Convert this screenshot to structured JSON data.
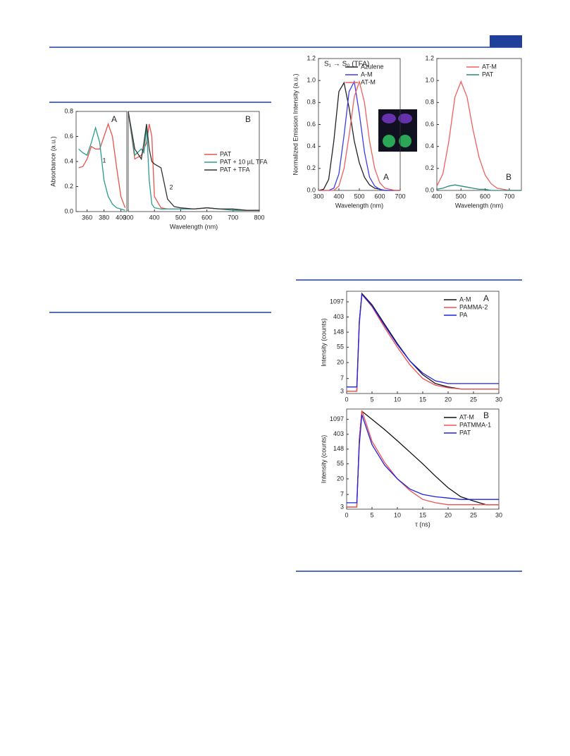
{
  "chart_data": [
    {
      "type": "line",
      "ylabel": "Absorbance (a.u.)",
      "panel_label": "A",
      "annotations": [
        "1"
      ],
      "x": [
        350,
        355,
        360,
        365,
        370,
        375,
        380,
        385,
        390,
        395,
        400,
        405
      ],
      "xlim": [
        347,
        407
      ],
      "xticks": [
        360,
        380,
        400
      ],
      "ylim": [
        0,
        0.8
      ],
      "yticks": [
        {
          "value": 0,
          "label": "0.0"
        },
        0.2,
        0.4,
        0.6,
        0.8
      ],
      "series": [
        {
          "color": "#e8534a",
          "values": [
            0.35,
            0.36,
            0.42,
            0.52,
            0.5,
            0.5,
            0.6,
            0.7,
            0.6,
            0.35,
            0.12,
            0.03
          ]
        },
        {
          "color": "#2a9d8f",
          "values": [
            0.5,
            0.47,
            0.45,
            0.55,
            0.67,
            0.55,
            0.25,
            0.12,
            0.06,
            0.03,
            0.02,
            0.01
          ]
        }
      ]
    },
    {
      "type": "line",
      "xlabel": "Wavelength (nm)",
      "panel_label": "B",
      "annotations": [
        "2"
      ],
      "legend": "center right",
      "x": [
        300,
        325,
        350,
        360,
        370,
        380,
        390,
        400,
        425,
        450,
        475,
        500,
        550,
        600,
        650,
        700,
        750,
        800
      ],
      "xlim": [
        300,
        800
      ],
      "xticks": [
        300,
        400,
        500,
        600,
        700,
        800
      ],
      "ylim": [
        0,
        0.8
      ],
      "series": [
        {
          "name": "PAT",
          "color": "#e8534a",
          "values": [
            0.8,
            0.42,
            0.45,
            0.5,
            0.55,
            0.7,
            0.6,
            0.12,
            0.03,
            0.02,
            0.02,
            0.02,
            0.02,
            0.03,
            0.02,
            0.02,
            0.01,
            0.01
          ]
        },
        {
          "name": "PAT + 10 µL TFA",
          "color": "#2a9d8f",
          "values": [
            0.8,
            0.45,
            0.5,
            0.47,
            0.67,
            0.25,
            0.06,
            0.03,
            0.02,
            0.02,
            0.02,
            0.02,
            0.02,
            0.03,
            0.02,
            0.01,
            0.01,
            0.01
          ]
        },
        {
          "name": "PAT + TFA",
          "color": "#333333",
          "values": [
            0.8,
            0.5,
            0.42,
            0.55,
            0.7,
            0.5,
            0.4,
            0.38,
            0.35,
            0.1,
            0.04,
            0.03,
            0.02,
            0.03,
            0.02,
            0.02,
            0.01,
            0.01
          ]
        }
      ]
    },
    {
      "type": "line",
      "title": "S₁ → S₀ (TFA)",
      "xlabel": "Wavelength (nm)",
      "ylabel": "Normalized Emission Intensity (a.u.)",
      "panel_label": "A",
      "legend": "upper right",
      "x": [
        300,
        325,
        350,
        375,
        400,
        425,
        450,
        475,
        500,
        525,
        550,
        575,
        600,
        625,
        650,
        675,
        700
      ],
      "xlim": [
        300,
        700
      ],
      "xticks": [
        300,
        400,
        500,
        600,
        700
      ],
      "ylim": [
        0,
        1.2
      ],
      "yticks": [
        {
          "value": 0,
          "label": "0.0"
        },
        0.2,
        0.4,
        0.6,
        0.8,
        {
          "value": 1,
          "label": "1.0"
        },
        1.2
      ],
      "series": [
        {
          "name": "Azulene",
          "color": "#222222",
          "values": [
            0,
            0.01,
            0.1,
            0.45,
            0.9,
            0.98,
            0.75,
            0.45,
            0.25,
            0.12,
            0.05,
            0.02,
            0.01,
            0,
            0,
            0,
            0
          ]
        },
        {
          "name": "A-M",
          "color": "#3b3bf0",
          "values": [
            0,
            0,
            0,
            0.02,
            0.15,
            0.5,
            0.9,
            0.99,
            0.7,
            0.35,
            0.12,
            0.04,
            0.01,
            0,
            0,
            0,
            0
          ]
        },
        {
          "name": "AT-M",
          "color": "#f06060",
          "values": [
            0,
            0,
            0,
            0,
            0.04,
            0.2,
            0.5,
            0.85,
            0.99,
            0.8,
            0.45,
            0.2,
            0.07,
            0.02,
            0.01,
            0,
            0
          ]
        }
      ]
    },
    {
      "type": "line",
      "xlabel": "Wavelength (nm)",
      "panel_label": "B",
      "legend": "upper right",
      "x": [
        400,
        425,
        450,
        475,
        500,
        525,
        550,
        575,
        600,
        625,
        650,
        675,
        700,
        725,
        750
      ],
      "xlim": [
        400,
        750
      ],
      "xticks": [
        400,
        500,
        600,
        700
      ],
      "ylim": [
        0,
        1.2
      ],
      "yticks": [
        {
          "value": 0,
          "label": "0.0"
        },
        0.2,
        0.4,
        0.6,
        0.8,
        {
          "value": 1,
          "label": "1.0"
        },
        1.2
      ],
      "series": [
        {
          "name": "AT-M",
          "color": "#f06060",
          "values": [
            0.04,
            0.15,
            0.45,
            0.85,
            0.99,
            0.85,
            0.55,
            0.3,
            0.14,
            0.06,
            0.02,
            0.01,
            0,
            0,
            0
          ]
        },
        {
          "name": "PAT",
          "color": "#2a8a7a",
          "values": [
            0.01,
            0.02,
            0.04,
            0.05,
            0.04,
            0.03,
            0.02,
            0.01,
            0.01,
            0,
            0,
            0,
            0,
            0,
            0
          ]
        }
      ]
    },
    {
      "type": "line",
      "ylabel": "Intensity (counts)",
      "panel_label": "A",
      "legend": "upper right",
      "yscale": "log",
      "x": [
        0,
        2,
        2.5,
        3,
        5,
        7.5,
        10,
        12.5,
        15,
        17.5,
        20,
        22.5,
        25,
        27.5,
        30
      ],
      "xlim": [
        0,
        30
      ],
      "xticks": [
        0,
        5,
        10,
        15,
        20,
        25,
        30
      ],
      "ylim": [
        2.6,
        2200
      ],
      "yticks": [
        3,
        7,
        20,
        55,
        148,
        403,
        1097
      ],
      "series": [
        {
          "name": "A-M",
          "color": "#111111",
          "values": [
            3,
            3,
            300,
            1900,
            900,
            250,
            70,
            22,
            9,
            5,
            4,
            3.5,
            3.5,
            3.5,
            3.5
          ]
        },
        {
          "name": "PAMMA-2",
          "color": "#f05050",
          "values": [
            3,
            3,
            250,
            1800,
            800,
            200,
            55,
            17,
            7,
            4.5,
            3.8,
            3.5,
            3.5,
            3.5,
            3.5
          ]
        },
        {
          "name": "PA",
          "color": "#2020e0",
          "values": [
            4,
            4,
            300,
            1800,
            850,
            230,
            65,
            22,
            10,
            6,
            5,
            5,
            5,
            5,
            5
          ]
        }
      ]
    },
    {
      "type": "line",
      "xlabel": "τ (ns)",
      "ylabel": "Intensity (counts)",
      "panel_label": "B",
      "legend": "upper right",
      "yscale": "log",
      "x": [
        0,
        2,
        2.5,
        3,
        5,
        7.5,
        10,
        12.5,
        15,
        17.5,
        20,
        22.5,
        25,
        27.5,
        30
      ],
      "xlim": [
        0,
        30
      ],
      "xticks": [
        0,
        5,
        10,
        15,
        20,
        25,
        30
      ],
      "ylim": [
        2.6,
        2200
      ],
      "yticks": [
        3,
        7,
        20,
        55,
        148,
        403,
        1097
      ],
      "series": [
        {
          "name": "AT-M",
          "color": "#111111",
          "values": [
            3,
            3,
            300,
            1900,
            1100,
            550,
            260,
            120,
            55,
            24,
            11,
            6,
            4.5,
            3.5,
            3.5
          ]
        },
        {
          "name": "PATMMA-1",
          "color": "#f05050",
          "values": [
            3,
            3,
            300,
            2000,
            250,
            60,
            20,
            9,
            5,
            4,
            3.5,
            3.5,
            3.5,
            3.5,
            3.5
          ]
        },
        {
          "name": "PAT",
          "color": "#2020e0",
          "values": [
            4,
            4,
            200,
            1500,
            200,
            50,
            20,
            10,
            7,
            6,
            5.5,
            5,
            5,
            5,
            5
          ]
        }
      ]
    }
  ]
}
